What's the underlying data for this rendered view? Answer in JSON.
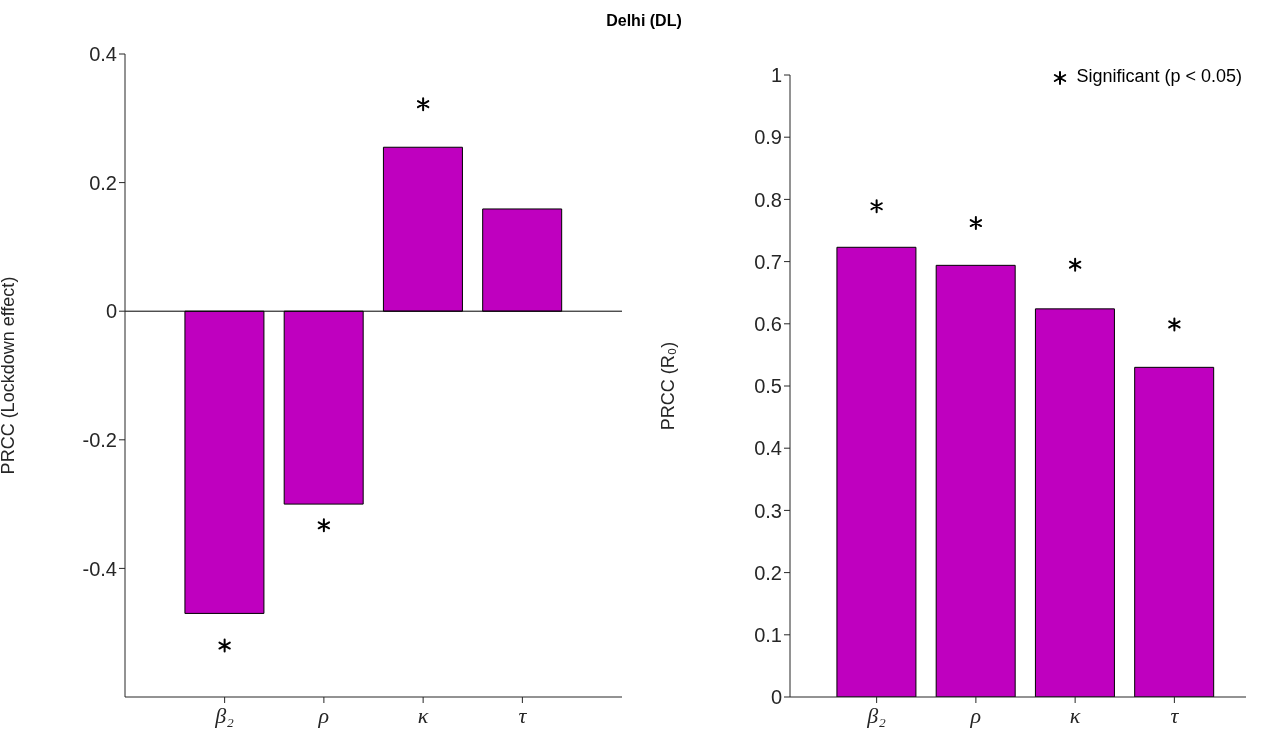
{
  "chart_data": [
    {
      "type": "bar",
      "title": "Delhi (DL)",
      "ylabel": "PRCC (Lockdown effect)",
      "categories": [
        "β₂",
        "ρ",
        "κ",
        "τ"
      ],
      "series": [
        {
          "color": "#bf00bf",
          "values": [
            -0.47,
            -0.3,
            0.255,
            0.159
          ]
        },
        {
          "type": "scatter",
          "color": "#000000",
          "marker": "cross",
          "values": [
            -0.52,
            -0.333,
            0.322,
            null
          ]
        }
      ],
      "ylim": [
        -0.6,
        0.4
      ],
      "yticks": [
        -0.4,
        -0.2,
        0,
        0.2,
        0.4
      ],
      "grid": false,
      "legend": false,
      "ref_lines": [
        {
          "axis": "y",
          "value": 0,
          "color": "#000000"
        }
      ]
    },
    {
      "type": "bar",
      "ylabel": "PRCC (R₀)",
      "categories": [
        "β₂",
        "ρ",
        "κ",
        "τ"
      ],
      "series": [
        {
          "color": "#bf00bf",
          "values": [
            0.723,
            0.694,
            0.624,
            0.53
          ]
        },
        {
          "type": "scatter",
          "name": "Significant (p < 0.05)",
          "color": "#000000",
          "marker": "cross",
          "values": [
            0.789,
            0.762,
            0.695,
            0.599
          ]
        }
      ],
      "ylim": [
        0,
        1
      ],
      "yticks": [
        0,
        0.1,
        0.2,
        0.3,
        0.4,
        0.5,
        0.6,
        0.7,
        0.8,
        0.9,
        1
      ],
      "grid": false,
      "legend": "top right"
    }
  ]
}
